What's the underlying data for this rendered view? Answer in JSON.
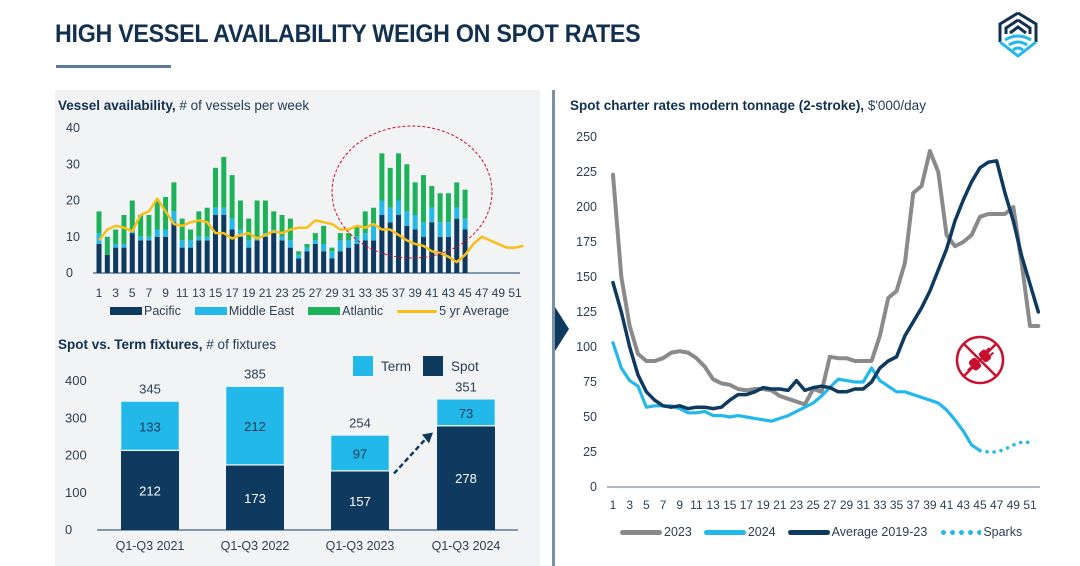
{
  "header": {
    "title": "HIGH VESSEL AVAILABILITY WEIGH ON SPOT RATES",
    "logo_icon": "company-logo-house-wifi-icon"
  },
  "colors": {
    "navy": "#0e3a5f",
    "light_blue": "#22b8ea",
    "green": "#1db25a",
    "yellow": "#f7bf18",
    "grey": "#8a8a8a",
    "red": "#c8102e",
    "title": "#12304f"
  },
  "chart_data": [
    {
      "id": "vessel-availability",
      "type": "bar",
      "stacked": true,
      "title": "Vessel availability,",
      "subtitle": " # of vessels per week",
      "xlabel": "",
      "ylabel": "",
      "ylim": [
        0,
        40
      ],
      "yticks": [
        0,
        10,
        20,
        30,
        40
      ],
      "xticks": [
        1,
        3,
        5,
        7,
        9,
        11,
        13,
        15,
        17,
        19,
        21,
        23,
        25,
        27,
        29,
        31,
        33,
        35,
        37,
        39,
        41,
        43,
        45,
        47,
        49,
        51
      ],
      "x": [
        1,
        2,
        3,
        4,
        5,
        6,
        7,
        8,
        9,
        10,
        11,
        12,
        13,
        14,
        15,
        16,
        17,
        18,
        19,
        20,
        21,
        22,
        23,
        24,
        25,
        26,
        27,
        28,
        29,
        30,
        31,
        32,
        33,
        34,
        35,
        36,
        37,
        38,
        39,
        40,
        41,
        42,
        43,
        44,
        45
      ],
      "series": [
        {
          "name": "Pacific",
          "values": [
            8,
            5,
            7,
            7,
            11,
            9,
            9,
            10,
            10,
            14,
            7,
            7,
            9,
            9,
            16,
            16,
            12,
            10,
            7,
            9,
            10,
            11,
            9,
            7,
            4,
            6,
            8,
            6,
            4,
            6,
            7,
            8,
            9,
            9,
            16,
            14,
            16,
            13,
            12,
            10,
            14,
            10,
            10,
            15,
            12
          ]
        },
        {
          "name": "Middle East",
          "values": [
            3,
            0,
            1,
            1,
            1,
            1,
            1,
            2,
            2,
            3,
            2,
            2,
            1,
            1,
            2,
            2,
            3,
            2,
            2,
            1,
            1,
            1,
            1,
            2,
            1,
            1,
            1,
            2,
            2,
            3,
            2,
            2,
            2,
            4,
            4,
            4,
            4,
            4,
            4,
            4,
            4,
            4,
            4,
            3,
            3
          ]
        },
        {
          "name": "Atlantic",
          "values": [
            6,
            5,
            4,
            8,
            8,
            6,
            6,
            8,
            9,
            8,
            6,
            3,
            7,
            8,
            11,
            14,
            12,
            8,
            6,
            10,
            9,
            5,
            6,
            6,
            1,
            1,
            2,
            5,
            1,
            2,
            2,
            3,
            6,
            5,
            13,
            11,
            13,
            13,
            9,
            13,
            6,
            8,
            8,
            7,
            8
          ]
        },
        {
          "name": "5 yr Average",
          "type": "line",
          "x": [
            1,
            2,
            3,
            4,
            5,
            6,
            7,
            8,
            9,
            10,
            11,
            12,
            13,
            14,
            15,
            16,
            17,
            18,
            19,
            20,
            21,
            22,
            23,
            24,
            25,
            26,
            27,
            28,
            29,
            30,
            31,
            32,
            33,
            34,
            35,
            36,
            37,
            38,
            39,
            40,
            41,
            42,
            43,
            44,
            45,
            46,
            47,
            48,
            49,
            50,
            51,
            52
          ],
          "values": [
            9,
            12,
            13,
            12.5,
            11.5,
            16,
            17,
            20.5,
            17,
            13.5,
            13,
            14,
            14.5,
            14,
            11,
            11,
            9.5,
            10.5,
            11,
            9.5,
            10.5,
            11.5,
            11,
            12,
            12.5,
            12.5,
            14.5,
            14,
            13.5,
            12,
            12,
            13,
            12.5,
            13.5,
            12,
            12,
            10.5,
            9,
            8,
            7.5,
            6,
            5.5,
            4.5,
            3,
            5,
            8,
            10,
            9,
            8,
            7,
            7,
            7.5
          ]
        }
      ],
      "annotation": "red dashed ellipse highlighting weeks 33-45",
      "legend": [
        "Pacific",
        "Middle East",
        "Atlantic",
        "5 yr Average"
      ],
      "legend_position": "bottom"
    },
    {
      "id": "spot-term-fixtures",
      "type": "bar",
      "stacked": true,
      "title": "Spot vs. Term fixtures,",
      "subtitle": " # of fixtures",
      "categories": [
        "Q1-Q3 2021",
        "Q1-Q3 2022",
        "Q1-Q3 2023",
        "Q1-Q3 2024"
      ],
      "ylim": [
        0,
        400
      ],
      "yticks": [
        0,
        100,
        200,
        300,
        400
      ],
      "series": [
        {
          "name": "Spot",
          "values": [
            212,
            173,
            157,
            278
          ]
        },
        {
          "name": "Term",
          "values": [
            133,
            212,
            97,
            73
          ]
        }
      ],
      "totals": [
        345,
        385,
        254,
        351
      ],
      "annotation": "dashed arrow from Q1-Q3 2023 spot to Q1-Q3 2024 spot",
      "legend": [
        "Term",
        "Spot"
      ],
      "legend_position": "top-right"
    },
    {
      "id": "spot-charter-rates",
      "type": "line",
      "title": "Spot charter rates modern tonnage (2-stroke),",
      "subtitle": " $'000/day",
      "ylim": [
        0,
        250
      ],
      "yticks": [
        0,
        25,
        50,
        75,
        100,
        125,
        150,
        175,
        200,
        225,
        250
      ],
      "xticks": [
        1,
        3,
        5,
        7,
        9,
        11,
        13,
        15,
        17,
        19,
        21,
        23,
        25,
        27,
        29,
        31,
        33,
        35,
        37,
        39,
        41,
        43,
        45,
        47,
        49,
        51
      ],
      "series": [
        {
          "name": "2023",
          "x": [
            1,
            2,
            3,
            4,
            5,
            6,
            7,
            8,
            9,
            10,
            11,
            12,
            13,
            14,
            15,
            16,
            17,
            18,
            19,
            20,
            21,
            22,
            23,
            24,
            25,
            26,
            27,
            28,
            29,
            30,
            31,
            32,
            33,
            34,
            35,
            36,
            37,
            38,
            39,
            40,
            41,
            42,
            43,
            44,
            45,
            46,
            47,
            48,
            49,
            50,
            51,
            52
          ],
          "values": [
            223,
            150,
            115,
            95,
            90,
            90,
            92,
            96,
            97,
            96,
            92,
            86,
            77,
            74,
            73,
            70,
            69,
            70,
            70,
            69,
            65,
            63,
            61,
            59,
            70,
            68,
            93,
            92,
            92,
            90,
            90,
            90,
            108,
            135,
            140,
            160,
            210,
            215,
            240,
            225,
            180,
            172,
            175,
            180,
            193,
            195,
            195,
            195,
            200,
            160,
            115,
            115
          ]
        },
        {
          "name": "2024",
          "x": [
            1,
            2,
            3,
            4,
            5,
            6,
            7,
            8,
            9,
            10,
            11,
            12,
            13,
            14,
            15,
            16,
            17,
            18,
            19,
            20,
            21,
            22,
            23,
            24,
            25,
            26,
            27,
            28,
            29,
            30,
            31,
            32,
            33,
            34,
            35,
            36,
            37,
            38,
            39,
            40,
            41,
            42,
            43,
            44,
            45
          ],
          "values": [
            103,
            85,
            76,
            72,
            57,
            58,
            58,
            58,
            56,
            53,
            53,
            54,
            51,
            51,
            50,
            51,
            50,
            49,
            48,
            47,
            49,
            51,
            54,
            57,
            60,
            65,
            71,
            77,
            76,
            75,
            75,
            85,
            76,
            72,
            68,
            68,
            66,
            64,
            62,
            60,
            55,
            48,
            40,
            30,
            26
          ]
        },
        {
          "name": "Average 2019-23",
          "x": [
            1,
            2,
            3,
            4,
            5,
            6,
            7,
            8,
            9,
            10,
            11,
            12,
            13,
            14,
            15,
            16,
            17,
            18,
            19,
            20,
            21,
            22,
            23,
            24,
            25,
            26,
            27,
            28,
            29,
            30,
            31,
            32,
            33,
            34,
            35,
            36,
            37,
            38,
            39,
            40,
            41,
            42,
            43,
            44,
            45,
            46,
            47,
            48,
            49,
            50,
            51,
            52
          ],
          "values": [
            146,
            125,
            100,
            80,
            68,
            62,
            58,
            57,
            58,
            56,
            57,
            57,
            56,
            57,
            62,
            66,
            66,
            68,
            71,
            70,
            70,
            69,
            76,
            69,
            71,
            72,
            71,
            68,
            68,
            70,
            70,
            75,
            85,
            90,
            93,
            108,
            118,
            128,
            140,
            155,
            170,
            190,
            205,
            218,
            228,
            232,
            233,
            210,
            190,
            165,
            145,
            125
          ]
        },
        {
          "name": "Sparks",
          "style": "dotted",
          "x": [
            45,
            46,
            47,
            48,
            49,
            50,
            51
          ],
          "values": [
            26,
            25,
            25,
            27,
            30,
            32,
            32
          ]
        }
      ],
      "annotation": "red no-plug icon",
      "legend": [
        "2023",
        "2024",
        "Average 2019-23",
        "Sparks"
      ],
      "legend_position": "bottom"
    }
  ],
  "legend_labels": {
    "pacific": "Pacific",
    "middle_east": "Middle East",
    "atlantic": "Atlantic",
    "avg5": "5 yr Average",
    "term": "Term",
    "spot": "Spot",
    "y2023": "2023",
    "y2024": "2024",
    "avg1923": "Average 2019-23",
    "sparks": "Sparks"
  }
}
